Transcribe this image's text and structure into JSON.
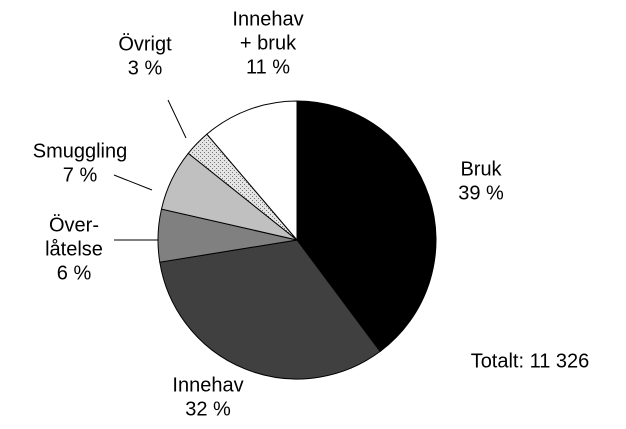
{
  "chart_data": {
    "type": "pie",
    "categories": [
      [
        "Bruk"
      ],
      [
        "Innehav"
      ],
      [
        "Över-",
        "låtelse"
      ],
      [
        "Smuggling"
      ],
      [
        "Övrigt"
      ],
      [
        "Innehav",
        "+ bruk"
      ]
    ],
    "values": [
      39,
      32,
      6,
      7,
      3,
      11
    ],
    "value_labels": [
      "39 %",
      "32 %",
      "6 %",
      "7 %",
      "3 %",
      "11 %"
    ],
    "colors": [
      "#000000",
      "#404040",
      "#808080",
      "#c0c0c0",
      "#dcdcdc",
      "#ffffff"
    ],
    "annotation": "Totalt: 11 326"
  }
}
